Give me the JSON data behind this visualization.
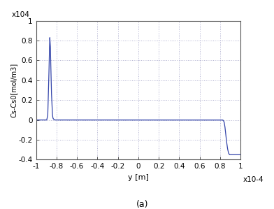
{
  "title": "",
  "xlabel": "y [m]",
  "ylabel": "Cs-Cs0[mol/m3]",
  "xlim": [
    -0.0001,
    0.0001
  ],
  "ylim": [
    -4000.0,
    10000.0
  ],
  "yticks": [
    -4000.0,
    -2000.0,
    0,
    2000.0,
    4000.0,
    6000.0,
    8000.0,
    10000.0
  ],
  "ytick_labels": [
    "-0.4",
    "-0.2",
    "0",
    "0.2",
    "0.4",
    "0.6",
    "0.8",
    "1"
  ],
  "xticks": [
    -0.0001,
    -8e-05,
    -6e-05,
    -4e-05,
    -2e-05,
    0,
    2e-05,
    4e-05,
    6e-05,
    8e-05,
    0.0001
  ],
  "xtick_labels": [
    "-1",
    "-0.8",
    "-0.6",
    "-0.4",
    "-0.2",
    "0",
    "0.2",
    "0.4",
    "0.6",
    "0.8",
    "1"
  ],
  "xscale_label": "x10-4",
  "yscale_label": "x104",
  "line_color": "#3344aa",
  "background_color": "#ffffff",
  "label_a": "(a)"
}
